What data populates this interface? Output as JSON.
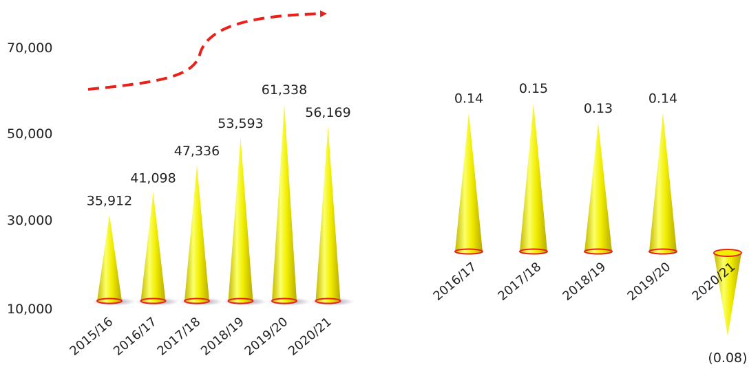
{
  "colors": {
    "cone_fill_light": "#fbff6a",
    "cone_fill_mid": "#f2ee00",
    "cone_fill_dark": "#c4b800",
    "cone_base_outline": "#e8221b",
    "trend_arrow": "#e8221b",
    "shadow": "#8d7f9c"
  },
  "chart_data": [
    {
      "type": "bar",
      "shape": "cone",
      "categories": [
        "2015/16",
        "2016/17",
        "2017/18",
        "2018/19",
        "2019/20",
        "2020/21"
      ],
      "values": [
        35912,
        41098,
        47336,
        53593,
        61338,
        56169
      ],
      "value_labels": [
        "35,912",
        "41,098",
        "47,336",
        "53,593",
        "61,338",
        "56,169"
      ],
      "yticks": [
        "10,000",
        "30,000",
        "50,000",
        "70,000"
      ],
      "ytick_values": [
        10000,
        30000,
        50000,
        70000
      ],
      "ylim": [
        10000,
        70000
      ],
      "grid": false,
      "annotation": "trend-arrow"
    },
    {
      "type": "bar",
      "shape": "cone",
      "categories": [
        "2016/17",
        "2017/18",
        "2018/19",
        "2019/20",
        "2020/21"
      ],
      "values": [
        0.14,
        0.15,
        0.13,
        0.14,
        -0.08
      ],
      "value_labels": [
        "0.14",
        "0.15",
        "0.13",
        "0.14",
        "(0.08)"
      ],
      "grid": false,
      "yaxis_visible": false
    }
  ]
}
